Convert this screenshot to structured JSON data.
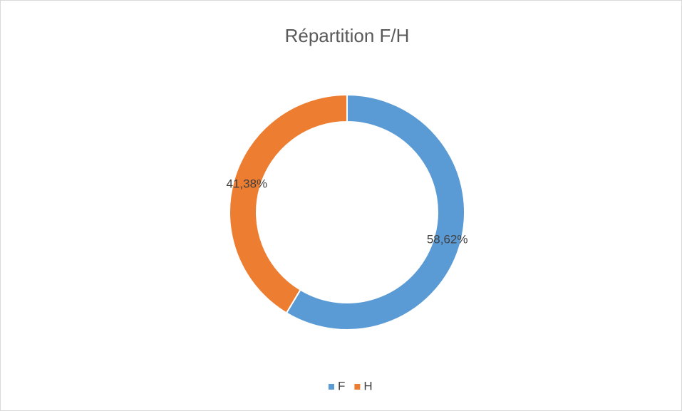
{
  "chart_data": {
    "type": "donut",
    "title": "Répartition F/H",
    "categories": [
      "F",
      "H"
    ],
    "values": [
      58.62,
      41.38
    ],
    "value_labels": [
      "58,62%",
      "41,38%"
    ],
    "colors": [
      "#5b9bd5",
      "#ed7d31"
    ],
    "legend": "bottom"
  }
}
